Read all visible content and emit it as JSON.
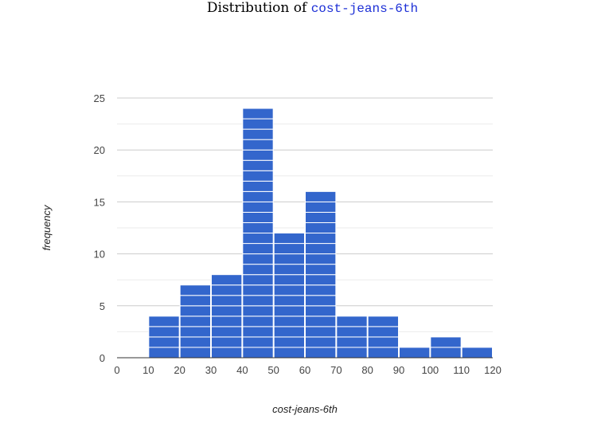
{
  "title_prefix": "Distribution of ",
  "title_variable": "cost-jeans-6th",
  "colors": {
    "bar": "#3366cc",
    "bar_stroke": "#ffffff",
    "gridline_major": "#cccccc",
    "gridline_minor": "#ebebeb",
    "baseline": "#333333",
    "title_variable": "#1c2fd6"
  },
  "chart_data": {
    "type": "bar",
    "xlabel": "cost-jeans-6th",
    "ylabel": "frequency",
    "xlim": [
      0,
      120
    ],
    "ylim": [
      0,
      25
    ],
    "x_ticks": [
      0,
      10,
      20,
      30,
      40,
      50,
      60,
      70,
      80,
      90,
      100,
      110,
      120
    ],
    "y_ticks": [
      0,
      5,
      10,
      15,
      20,
      25
    ],
    "grid": true,
    "bins": [
      {
        "x0": 0,
        "x1": 10,
        "count": 0
      },
      {
        "x0": 10,
        "x1": 20,
        "count": 4
      },
      {
        "x0": 20,
        "x1": 30,
        "count": 7
      },
      {
        "x0": 30,
        "x1": 40,
        "count": 8
      },
      {
        "x0": 40,
        "x1": 50,
        "count": 24
      },
      {
        "x0": 50,
        "x1": 60,
        "count": 12
      },
      {
        "x0": 60,
        "x1": 70,
        "count": 16
      },
      {
        "x0": 70,
        "x1": 80,
        "count": 4
      },
      {
        "x0": 80,
        "x1": 90,
        "count": 4
      },
      {
        "x0": 90,
        "x1": 100,
        "count": 1
      },
      {
        "x0": 100,
        "x1": 110,
        "count": 2
      },
      {
        "x0": 110,
        "x1": 120,
        "count": 1
      }
    ]
  }
}
